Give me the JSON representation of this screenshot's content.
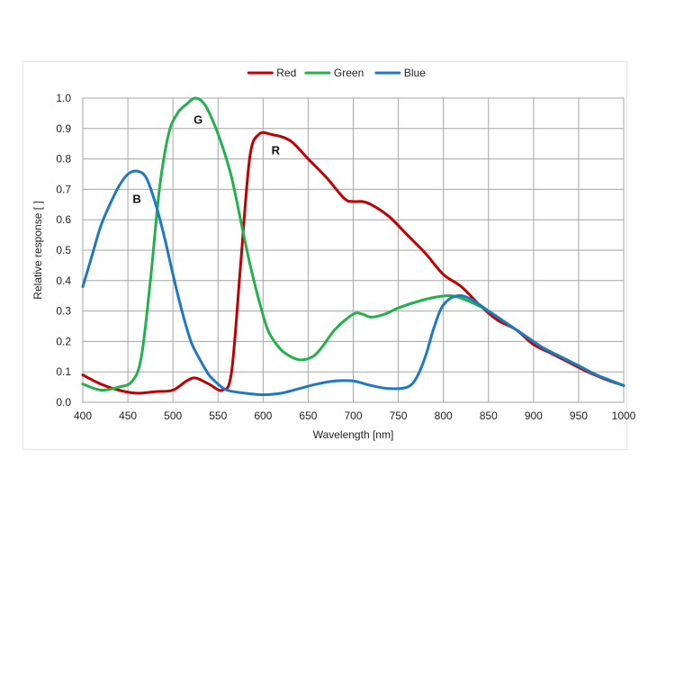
{
  "chart_data": {
    "type": "line",
    "title": "",
    "xlabel": "Wavelength [nm]",
    "ylabel": "Relative response [ ]",
    "xlim": [
      400,
      1000
    ],
    "ylim": [
      0,
      1.0
    ],
    "x_ticks": [
      "400",
      "450",
      "500",
      "550",
      "600",
      "650",
      "700",
      "750",
      "800",
      "850",
      "900",
      "950",
      "1000"
    ],
    "y_ticks": [
      "0.0",
      "0.1",
      "0.2",
      "0.3",
      "0.4",
      "0.5",
      "0.6",
      "0.7",
      "0.8",
      "0.9",
      "1.0"
    ],
    "grid": true,
    "legend_position": "top-center",
    "series": [
      {
        "name": "Red",
        "color": "#c00000",
        "x": [
          400,
          420,
          440,
          460,
          480,
          500,
          515,
          525,
          540,
          555,
          565,
          575,
          585,
          595,
          610,
          630,
          650,
          670,
          690,
          700,
          710,
          720,
          740,
          760,
          780,
          800,
          820,
          840,
          860,
          880,
          900,
          920,
          940,
          960,
          980,
          1000
        ],
        "y": [
          0.09,
          0.06,
          0.04,
          0.03,
          0.035,
          0.04,
          0.07,
          0.08,
          0.06,
          0.04,
          0.1,
          0.45,
          0.8,
          0.88,
          0.88,
          0.86,
          0.8,
          0.74,
          0.67,
          0.66,
          0.66,
          0.65,
          0.61,
          0.55,
          0.49,
          0.42,
          0.38,
          0.32,
          0.27,
          0.24,
          0.19,
          0.16,
          0.13,
          0.1,
          0.075,
          0.055
        ]
      },
      {
        "name": "Green",
        "color": "#22b14c",
        "x": [
          400,
          420,
          440,
          455,
          465,
          475,
          485,
          495,
          505,
          515,
          525,
          535,
          545,
          555,
          565,
          575,
          585,
          595,
          605,
          615,
          625,
          640,
          655,
          665,
          680,
          700,
          710,
          720,
          735,
          750,
          770,
          790,
          810,
          830,
          850,
          870,
          890,
          910,
          930,
          950,
          970,
          1000
        ],
        "y": [
          0.06,
          0.04,
          0.05,
          0.07,
          0.15,
          0.4,
          0.7,
          0.88,
          0.95,
          0.98,
          1.0,
          0.98,
          0.92,
          0.84,
          0.74,
          0.6,
          0.46,
          0.34,
          0.24,
          0.19,
          0.16,
          0.14,
          0.15,
          0.18,
          0.24,
          0.29,
          0.29,
          0.28,
          0.29,
          0.31,
          0.33,
          0.345,
          0.35,
          0.33,
          0.3,
          0.26,
          0.22,
          0.18,
          0.15,
          0.12,
          0.09,
          0.055
        ]
      },
      {
        "name": "Blue",
        "color": "#1f78c1",
        "x": [
          400,
          410,
          420,
          430,
          440,
          450,
          460,
          470,
          480,
          490,
          500,
          510,
          520,
          530,
          540,
          550,
          560,
          580,
          600,
          620,
          640,
          660,
          680,
          700,
          720,
          740,
          760,
          770,
          780,
          790,
          800,
          815,
          830,
          850,
          870,
          890,
          910,
          930,
          950,
          970,
          1000
        ],
        "y": [
          0.38,
          0.48,
          0.58,
          0.65,
          0.71,
          0.75,
          0.76,
          0.74,
          0.66,
          0.55,
          0.42,
          0.3,
          0.2,
          0.14,
          0.09,
          0.06,
          0.04,
          0.03,
          0.025,
          0.03,
          0.045,
          0.06,
          0.07,
          0.07,
          0.055,
          0.045,
          0.05,
          0.08,
          0.15,
          0.25,
          0.32,
          0.35,
          0.34,
          0.3,
          0.26,
          0.22,
          0.18,
          0.15,
          0.12,
          0.09,
          0.055
        ]
      }
    ],
    "annotations": [
      {
        "text": "B",
        "x": 460,
        "y": 0.67
      },
      {
        "text": "G",
        "x": 528,
        "y": 0.93
      },
      {
        "text": "R",
        "x": 614,
        "y": 0.83
      }
    ]
  }
}
